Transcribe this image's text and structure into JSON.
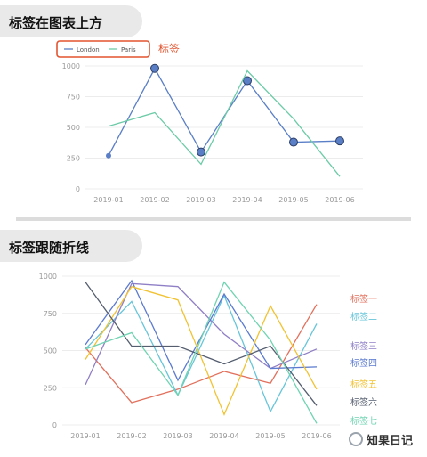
{
  "sections": [
    {
      "title": "标签在图表上方"
    },
    {
      "title": "标签跟随折线"
    }
  ],
  "annotation": {
    "label": "标签",
    "color": "#e2542f"
  },
  "watermark": {
    "text": "知果日记",
    "icon": "gear-logo-icon"
  },
  "chart_data": [
    {
      "type": "line",
      "categories": [
        "2019-01",
        "2019-02",
        "2019-03",
        "2019-04",
        "2019-05",
        "2019-06"
      ],
      "ylim": [
        0,
        1000
      ],
      "yticks": [
        0,
        250,
        500,
        750,
        1000
      ],
      "legend": {
        "position": "top-left",
        "entries": [
          "London",
          "Paris"
        ]
      },
      "grid": true,
      "series": [
        {
          "name": "London",
          "color": "#5a7fc7",
          "values": [
            270,
            980,
            300,
            880,
            380,
            390
          ],
          "markers": true
        },
        {
          "name": "Paris",
          "color": "#6ccba7",
          "values": [
            510,
            620,
            200,
            960,
            570,
            100
          ],
          "markers": false
        }
      ]
    },
    {
      "type": "line",
      "categories": [
        "2019-01",
        "2019-02",
        "2019-03",
        "2019-04",
        "2019-05",
        "2019-06"
      ],
      "ylim": [
        0,
        1000
      ],
      "yticks": [
        0,
        250,
        500,
        750,
        1000
      ],
      "grid": true,
      "series": [
        {
          "name": "标签一",
          "color": "#e2705c",
          "values": [
            520,
            150,
            240,
            360,
            280,
            810
          ]
        },
        {
          "name": "标签二",
          "color": "#67c5d9",
          "values": [
            510,
            830,
            200,
            870,
            90,
            680
          ]
        },
        {
          "name": "标签三",
          "color": "#8f7fc6",
          "values": [
            270,
            950,
            930,
            610,
            380,
            510
          ]
        },
        {
          "name": "标签四",
          "color": "#5b7ad0",
          "values": [
            540,
            970,
            300,
            880,
            380,
            390
          ]
        },
        {
          "name": "标签五",
          "color": "#f1c232",
          "values": [
            440,
            930,
            840,
            70,
            800,
            240
          ]
        },
        {
          "name": "标签六",
          "color": "#555e6f",
          "values": [
            960,
            530,
            530,
            410,
            530,
            130
          ]
        },
        {
          "name": "标签七",
          "color": "#6fd3b1",
          "values": [
            510,
            620,
            200,
            960,
            570,
            10
          ]
        }
      ]
    }
  ]
}
